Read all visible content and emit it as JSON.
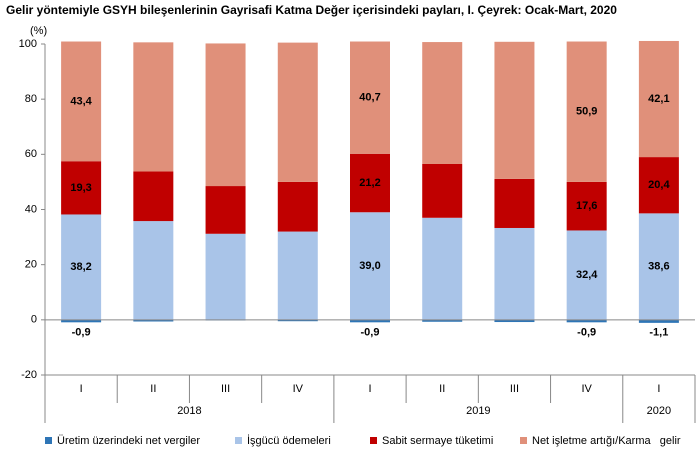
{
  "chart_data": {
    "type": "stacked-bar",
    "title": "Gelir yöntemiyle GSYH bileşenlerinin Gayrisafi Katma Değer içerisindeki payları, I. Çeyrek: Ocak-Mart, 2020",
    "y_axis_label": "(%)",
    "groups": [
      {
        "name": "2018",
        "categories": [
          "I",
          "II",
          "III",
          "IV"
        ]
      },
      {
        "name": "2019",
        "categories": [
          "I",
          "II",
          "III",
          "IV"
        ]
      },
      {
        "name": "2020",
        "categories": [
          "I"
        ]
      }
    ],
    "series": [
      {
        "name": "Üretim üzerindeki net vergiler",
        "color": "#2e75b6",
        "values": [
          -0.9,
          -0.6,
          -0.2,
          -0.5,
          -0.9,
          -0.7,
          -0.8,
          -0.9,
          -1.1
        ],
        "value_labels": [
          "-0,9",
          null,
          null,
          null,
          "-0,9",
          null,
          null,
          "-0,9",
          "-1,1"
        ]
      },
      {
        "name": "İşgücü ödemeleri",
        "color": "#a9c4e8",
        "values": [
          38.2,
          35.8,
          31.2,
          32.0,
          39.0,
          37.0,
          33.3,
          32.4,
          38.6
        ],
        "value_labels": [
          "38,2",
          null,
          null,
          null,
          "39,0",
          null,
          null,
          "32,4",
          "38,6"
        ]
      },
      {
        "name": "Sabit sermaye tüketimi",
        "color": "#c00000",
        "values": [
          19.3,
          18.0,
          17.3,
          18.0,
          21.2,
          19.5,
          17.8,
          17.6,
          20.4
        ],
        "value_labels": [
          "19,3",
          null,
          null,
          null,
          "21,2",
          null,
          null,
          "17,6",
          "20,4"
        ]
      },
      {
        "name": "Net işletme artığı/Karma   gelir",
        "color": "#e0907a",
        "values": [
          43.4,
          46.8,
          51.7,
          50.5,
          40.7,
          44.2,
          49.7,
          50.9,
          42.1
        ],
        "value_labels": [
          "43,4",
          null,
          null,
          null,
          "40,7",
          null,
          null,
          "50,9",
          "42,1"
        ]
      }
    ],
    "ylim": [
      -20,
      100
    ],
    "yticks": [
      -20,
      0,
      20,
      40,
      60,
      80,
      100
    ],
    "grid": false,
    "legend": "bottom"
  }
}
